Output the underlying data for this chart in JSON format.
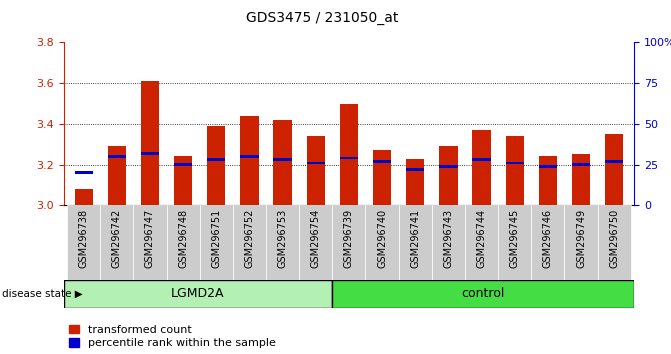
{
  "title": "GDS3475 / 231050_at",
  "samples": [
    "GSM296738",
    "GSM296742",
    "GSM296747",
    "GSM296748",
    "GSM296751",
    "GSM296752",
    "GSM296753",
    "GSM296754",
    "GSM296739",
    "GSM296740",
    "GSM296741",
    "GSM296743",
    "GSM296744",
    "GSM296745",
    "GSM296746",
    "GSM296749",
    "GSM296750"
  ],
  "groups": [
    "LGMD2A",
    "LGMD2A",
    "LGMD2A",
    "LGMD2A",
    "LGMD2A",
    "LGMD2A",
    "LGMD2A",
    "LGMD2A",
    "control",
    "control",
    "control",
    "control",
    "control",
    "control",
    "control",
    "control",
    "control"
  ],
  "transformed_count": [
    3.08,
    3.29,
    3.61,
    3.24,
    3.39,
    3.44,
    3.42,
    3.34,
    3.5,
    3.27,
    3.23,
    3.29,
    3.37,
    3.34,
    3.24,
    3.25,
    3.35
  ],
  "percentile_rank": [
    20,
    30,
    32,
    25,
    28,
    30,
    28,
    26,
    29,
    27,
    22,
    24,
    28,
    26,
    24,
    25,
    27
  ],
  "ylim_left": [
    3.0,
    3.8
  ],
  "ylim_right": [
    0,
    100
  ],
  "yticks_left": [
    3.0,
    3.2,
    3.4,
    3.6,
    3.8
  ],
  "yticks_right": [
    0,
    25,
    50,
    75,
    100
  ],
  "ytick_labels_right": [
    "0",
    "25",
    "50",
    "75",
    "100%"
  ],
  "bar_color": "#cc2200",
  "percentile_color": "#0000cc",
  "lgmd2a_color": "#b3f0b3",
  "control_color": "#44dd44",
  "left_axis_color": "#cc2200",
  "right_axis_color": "#0000cc",
  "xtick_bg_color": "#cccccc",
  "bar_width": 0.55,
  "base_value": 3.0,
  "disease_state_label": "disease state",
  "lgmd2a_label": "LGMD2A",
  "control_label": "control",
  "legend_red_label": "transformed count",
  "legend_blue_label": "percentile rank within the sample",
  "lgmd2a_count": 8,
  "ctrl_count": 9
}
